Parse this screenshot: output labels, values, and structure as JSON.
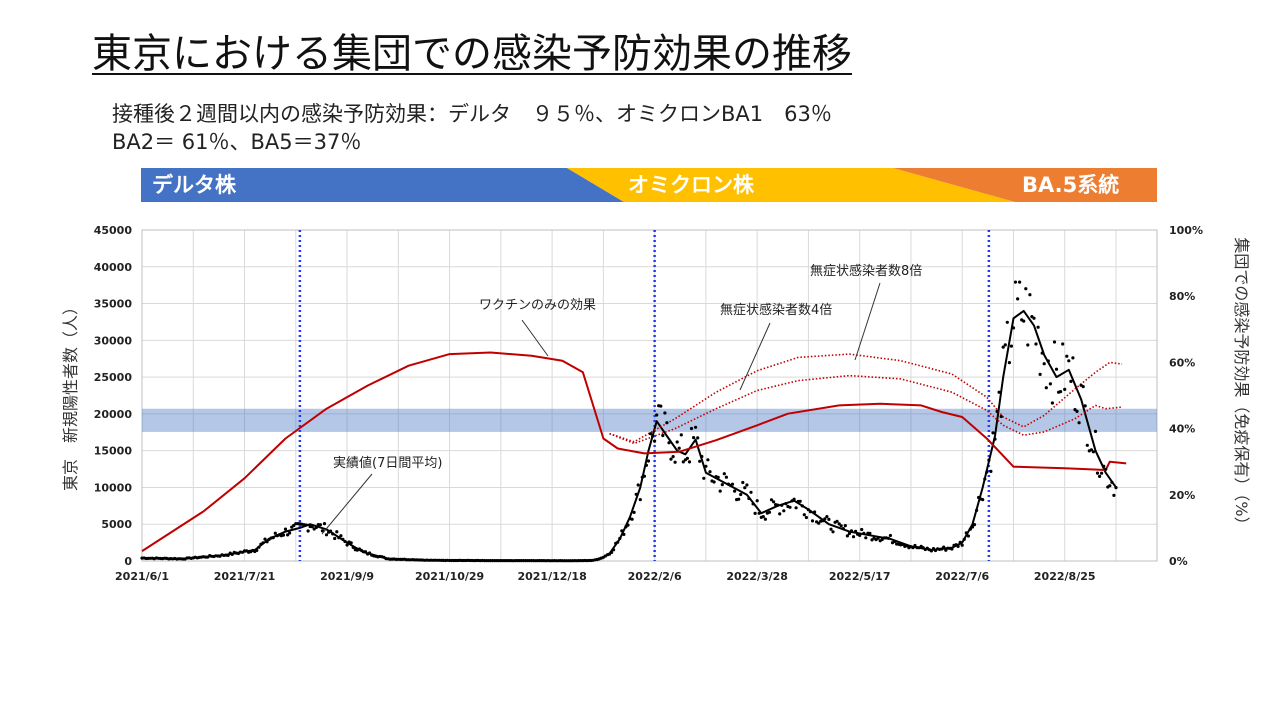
{
  "title": "東京における集団での感染予防効果の推移",
  "subtitle": [
    "接種後２週間以内の感染予防効果：デルタ　９５％、オミクロンBA1　63％",
    "BA2＝ 61％、BA5＝37％"
  ],
  "strain_bands": [
    {
      "label": "デルタ株",
      "color": "#4472c4"
    },
    {
      "label": "オミクロン株",
      "color": "#ffc000"
    },
    {
      "label": "BA.5系統",
      "color": "#ed7d31"
    }
  ],
  "chart_data": {
    "type": "line",
    "x_ticks": [
      "2021/6/1",
      "2021/7/21",
      "2021/9/9",
      "2021/10/29",
      "2021/12/18",
      "2022/2/6",
      "2022/3/28",
      "2022/5/17",
      "2022/7/6",
      "2022/8/25"
    ],
    "x_range_days": [
      0,
      495
    ],
    "y_left": {
      "label": "東京　新規陽性者数（人）",
      "min": 0,
      "max": 45000,
      "step": 5000,
      "ticks": [
        "0",
        "5000",
        "10000",
        "15000",
        "20000",
        "25000",
        "30000",
        "35000",
        "40000",
        "45000"
      ]
    },
    "y_right": {
      "label": "集団での感染予防効果（免疫保有）（%）",
      "min": 0,
      "max": 100,
      "step": 20,
      "ticks": [
        "0%",
        "20%",
        "40%",
        "60%",
        "80%",
        "100%"
      ]
    },
    "grid": true,
    "highlight_band_right_pct": [
      39,
      46
    ],
    "vertical_markers_day": [
      77,
      250,
      413
    ],
    "series": [
      {
        "name": "実績値(7日間平均)",
        "axis": "left",
        "color": "#000000",
        "style": "solid",
        "points": [
          [
            0,
            400
          ],
          [
            20,
            300
          ],
          [
            40,
            800
          ],
          [
            55,
            1500
          ],
          [
            62,
            3000
          ],
          [
            70,
            4000
          ],
          [
            77,
            4500
          ],
          [
            82,
            5000
          ],
          [
            90,
            4300
          ],
          [
            100,
            2500
          ],
          [
            108,
            1200
          ],
          [
            120,
            300
          ],
          [
            140,
            100
          ],
          [
            170,
            50
          ],
          [
            200,
            50
          ],
          [
            210,
            40
          ],
          [
            220,
            80
          ],
          [
            224,
            400
          ],
          [
            228,
            1000
          ],
          [
            233,
            3000
          ],
          [
            238,
            6000
          ],
          [
            243,
            10000
          ],
          [
            247,
            15000
          ],
          [
            251,
            19000
          ],
          [
            256,
            17000
          ],
          [
            261,
            15000
          ],
          [
            265,
            14500
          ],
          [
            270,
            16500
          ],
          [
            275,
            12000
          ],
          [
            285,
            10500
          ],
          [
            295,
            9000
          ],
          [
            302,
            6500
          ],
          [
            310,
            7500
          ],
          [
            318,
            8200
          ],
          [
            325,
            7000
          ],
          [
            335,
            5000
          ],
          [
            345,
            4000
          ],
          [
            355,
            3500
          ],
          [
            365,
            3000
          ],
          [
            375,
            2000
          ],
          [
            385,
            1500
          ],
          [
            395,
            1800
          ],
          [
            400,
            2500
          ],
          [
            405,
            5000
          ],
          [
            410,
            10000
          ],
          [
            416,
            17000
          ],
          [
            420,
            25000
          ],
          [
            425,
            33000
          ],
          [
            430,
            34000
          ],
          [
            435,
            32000
          ],
          [
            440,
            28000
          ],
          [
            446,
            25000
          ],
          [
            452,
            26000
          ],
          [
            458,
            22000
          ],
          [
            465,
            15000
          ],
          [
            470,
            12000
          ],
          [
            475,
            10000
          ]
        ]
      },
      {
        "name": "ワクチンのみの効果",
        "axis": "right",
        "color": "#c00000",
        "style": "solid",
        "points": [
          [
            0,
            3
          ],
          [
            30,
            15
          ],
          [
            50,
            25
          ],
          [
            70,
            37
          ],
          [
            90,
            46
          ],
          [
            110,
            53
          ],
          [
            130,
            59
          ],
          [
            150,
            62.5
          ],
          [
            170,
            63
          ],
          [
            190,
            62
          ],
          [
            205,
            60.5
          ],
          [
            215,
            57
          ],
          [
            225,
            37
          ],
          [
            232,
            34
          ],
          [
            245,
            32.5
          ],
          [
            262,
            33
          ],
          [
            280,
            36.5
          ],
          [
            300,
            41
          ],
          [
            315,
            44.5
          ],
          [
            340,
            47
          ],
          [
            360,
            47.5
          ],
          [
            380,
            47
          ],
          [
            390,
            45
          ],
          [
            400,
            43.5
          ],
          [
            412,
            37
          ],
          [
            425,
            28.5
          ],
          [
            450,
            28
          ],
          [
            470,
            27.5
          ],
          [
            472,
            30
          ],
          [
            480,
            29.5
          ]
        ]
      },
      {
        "name": "無症状感染者数4倍",
        "axis": "right",
        "color": "#c00000",
        "style": "dotted",
        "points": [
          [
            228,
            38.5
          ],
          [
            240,
            35.5
          ],
          [
            260,
            40
          ],
          [
            280,
            46
          ],
          [
            300,
            51.5
          ],
          [
            320,
            54.5
          ],
          [
            345,
            56
          ],
          [
            370,
            55
          ],
          [
            395,
            51
          ],
          [
            412,
            45.5
          ],
          [
            420,
            41
          ],
          [
            430,
            38
          ],
          [
            440,
            39
          ],
          [
            455,
            43
          ],
          [
            465,
            47
          ],
          [
            470,
            46
          ],
          [
            478,
            46.5
          ]
        ]
      },
      {
        "name": "無症状感染者数8倍",
        "axis": "right",
        "color": "#c00000",
        "style": "dotted",
        "points": [
          [
            228,
            38.5
          ],
          [
            240,
            36
          ],
          [
            260,
            43
          ],
          [
            280,
            51
          ],
          [
            300,
            57.5
          ],
          [
            320,
            61.5
          ],
          [
            345,
            62.5
          ],
          [
            370,
            60.5
          ],
          [
            395,
            56.5
          ],
          [
            412,
            49.5
          ],
          [
            420,
            43.5
          ],
          [
            430,
            40.5
          ],
          [
            440,
            44
          ],
          [
            455,
            52
          ],
          [
            465,
            57
          ],
          [
            472,
            60
          ],
          [
            478,
            59.5
          ]
        ]
      }
    ],
    "annotations": [
      {
        "text": "実績値(7日間平均)",
        "target": "実績値(7日間平均)"
      },
      {
        "text": "ワクチンのみの効果",
        "target": "ワクチンのみの効果"
      },
      {
        "text": "無症状感染者数4倍",
        "target": "無症状感染者数4倍"
      },
      {
        "text": "無症状感染者数8倍",
        "target": "無症状感染者数8倍"
      }
    ]
  }
}
